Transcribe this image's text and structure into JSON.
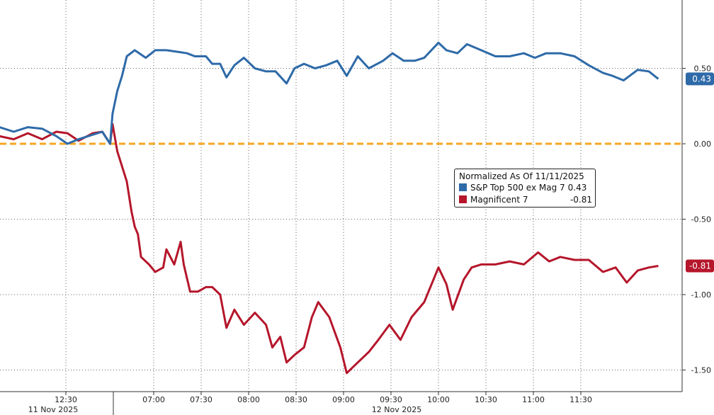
{
  "chart_data": {
    "type": "line",
    "legend_title": "Normalized As Of 11/11/2025",
    "legend_position": "center-right",
    "grid": true,
    "ylim": [
      -1.64,
      0.95
    ],
    "y_ticks": [
      "0.50",
      "0.00",
      "-0.50",
      "-1.00",
      "-1.50"
    ],
    "y_tick_values": [
      0.5,
      0,
      -0.5,
      -1,
      -1.5
    ],
    "x_ticks": [
      {
        "date": "11 Nov 2025",
        "time": "12:30"
      },
      {
        "date": "12 Nov 2025",
        "time": "07:00"
      },
      {
        "date": "12 Nov 2025",
        "time": "07:30"
      },
      {
        "date": "12 Nov 2025",
        "time": "08:00"
      },
      {
        "date": "12 Nov 2025",
        "time": "08:30"
      },
      {
        "date": "12 Nov 2025",
        "time": "09:00"
      },
      {
        "date": "12 Nov 2025",
        "time": "09:30"
      },
      {
        "date": "12 Nov 2025",
        "time": "10:00"
      },
      {
        "date": "12 Nov 2025",
        "time": "10:30"
      },
      {
        "date": "12 Nov 2025",
        "time": "11:00"
      },
      {
        "date": "12 Nov 2025",
        "time": "11:30"
      }
    ],
    "date_labels": [
      "11 Nov 2025",
      "12 Nov 2025"
    ],
    "reference_line": {
      "value": 0,
      "color": "#f5a623",
      "style": "dashed"
    },
    "series": [
      {
        "name": "S&P Top 500 ex Mag 7",
        "color": "#2e6aa8",
        "last_value": "0.43",
        "points": [
          [
            "11 Nov 2025",
            "11:48",
            0.11
          ],
          [
            "11 Nov 2025",
            "11:57",
            0.08
          ],
          [
            "11 Nov 2025",
            "12:06",
            0.11
          ],
          [
            "11 Nov 2025",
            "12:15",
            0.1
          ],
          [
            "11 Nov 2025",
            "12:24",
            0.05
          ],
          [
            "11 Nov 2025",
            "12:31",
            0.0
          ],
          [
            "11 Nov 2025",
            "12:38",
            0.03
          ],
          [
            "11 Nov 2025",
            "12:47",
            0.06
          ],
          [
            "11 Nov 2025",
            "12:53",
            0.08
          ],
          [
            "11 Nov 2025",
            "12:58",
            0.0
          ],
          [
            "12 Nov 2025",
            "06:34",
            0.2
          ],
          [
            "12 Nov 2025",
            "06:37",
            0.35
          ],
          [
            "12 Nov 2025",
            "06:40",
            0.45
          ],
          [
            "12 Nov 2025",
            "06:43",
            0.58
          ],
          [
            "12 Nov 2025",
            "06:48",
            0.62
          ],
          [
            "12 Nov 2025",
            "06:55",
            0.57
          ],
          [
            "12 Nov 2025",
            "07:01",
            0.62
          ],
          [
            "12 Nov 2025",
            "07:08",
            0.62
          ],
          [
            "12 Nov 2025",
            "07:15",
            0.61
          ],
          [
            "12 Nov 2025",
            "07:21",
            0.6
          ],
          [
            "12 Nov 2025",
            "07:26",
            0.58
          ],
          [
            "12 Nov 2025",
            "07:33",
            0.58
          ],
          [
            "12 Nov 2025",
            "07:37",
            0.53
          ],
          [
            "12 Nov 2025",
            "07:42",
            0.53
          ],
          [
            "12 Nov 2025",
            "07:46",
            0.44
          ],
          [
            "12 Nov 2025",
            "07:51",
            0.52
          ],
          [
            "12 Nov 2025",
            "07:57",
            0.57
          ],
          [
            "12 Nov 2025",
            "08:04",
            0.5
          ],
          [
            "12 Nov 2025",
            "08:11",
            0.48
          ],
          [
            "12 Nov 2025",
            "08:17",
            0.48
          ],
          [
            "12 Nov 2025",
            "08:24",
            0.4
          ],
          [
            "12 Nov 2025",
            "08:29",
            0.5
          ],
          [
            "12 Nov 2025",
            "08:35",
            0.53
          ],
          [
            "12 Nov 2025",
            "08:42",
            0.5
          ],
          [
            "12 Nov 2025",
            "08:49",
            0.52
          ],
          [
            "12 Nov 2025",
            "08:56",
            0.55
          ],
          [
            "12 Nov 2025",
            "09:02",
            0.45
          ],
          [
            "12 Nov 2025",
            "09:09",
            0.58
          ],
          [
            "12 Nov 2025",
            "09:16",
            0.5
          ],
          [
            "12 Nov 2025",
            "09:25",
            0.55
          ],
          [
            "12 Nov 2025",
            "09:31",
            0.6
          ],
          [
            "12 Nov 2025",
            "09:38",
            0.55
          ],
          [
            "12 Nov 2025",
            "09:45",
            0.55
          ],
          [
            "12 Nov 2025",
            "09:51",
            0.57
          ],
          [
            "12 Nov 2025",
            "10:00",
            0.67
          ],
          [
            "12 Nov 2025",
            "10:05",
            0.62
          ],
          [
            "12 Nov 2025",
            "10:12",
            0.6
          ],
          [
            "12 Nov 2025",
            "10:18",
            0.66
          ],
          [
            "12 Nov 2025",
            "10:27",
            0.62
          ],
          [
            "12 Nov 2025",
            "10:36",
            0.58
          ],
          [
            "12 Nov 2025",
            "10:45",
            0.58
          ],
          [
            "12 Nov 2025",
            "10:54",
            0.6
          ],
          [
            "12 Nov 2025",
            "11:01",
            0.57
          ],
          [
            "12 Nov 2025",
            "11:08",
            0.6
          ],
          [
            "12 Nov 2025",
            "11:17",
            0.6
          ],
          [
            "12 Nov 2025",
            "11:26",
            0.58
          ],
          [
            "12 Nov 2025",
            "11:35",
            0.52
          ],
          [
            "12 Nov 2025",
            "11:44",
            0.47
          ],
          [
            "12 Nov 2025",
            "11:50",
            0.45
          ],
          [
            "12 Nov 2025",
            "11:57",
            0.42
          ],
          [
            "12 Nov 2025",
            "12:06",
            0.49
          ],
          [
            "12 Nov 2025",
            "12:13",
            0.48
          ],
          [
            "12 Nov 2025",
            "12:19",
            0.43
          ]
        ]
      },
      {
        "name": "Magnificent 7",
        "color": "#b5162b",
        "last_value": "-0.81",
        "points": [
          [
            "11 Nov 2025",
            "11:48",
            0.05
          ],
          [
            "11 Nov 2025",
            "11:57",
            0.03
          ],
          [
            "11 Nov 2025",
            "12:06",
            0.07
          ],
          [
            "11 Nov 2025",
            "12:15",
            0.03
          ],
          [
            "11 Nov 2025",
            "12:24",
            0.08
          ],
          [
            "11 Nov 2025",
            "12:31",
            0.07
          ],
          [
            "11 Nov 2025",
            "12:38",
            0.02
          ],
          [
            "11 Nov 2025",
            "12:47",
            0.07
          ],
          [
            "11 Nov 2025",
            "12:53",
            0.08
          ],
          [
            "11 Nov 2025",
            "12:58",
            0.0
          ],
          [
            "12 Nov 2025",
            "06:34",
            0.13
          ],
          [
            "12 Nov 2025",
            "06:37",
            -0.05
          ],
          [
            "12 Nov 2025",
            "06:40",
            -0.15
          ],
          [
            "12 Nov 2025",
            "06:43",
            -0.25
          ],
          [
            "12 Nov 2025",
            "06:46",
            -0.45
          ],
          [
            "12 Nov 2025",
            "06:48",
            -0.55
          ],
          [
            "12 Nov 2025",
            "06:50",
            -0.6
          ],
          [
            "12 Nov 2025",
            "06:52",
            -0.75
          ],
          [
            "12 Nov 2025",
            "06:57",
            -0.8
          ],
          [
            "12 Nov 2025",
            "07:01",
            -0.85
          ],
          [
            "12 Nov 2025",
            "07:06",
            -0.82
          ],
          [
            "12 Nov 2025",
            "07:08",
            -0.7
          ],
          [
            "12 Nov 2025",
            "07:13",
            -0.8
          ],
          [
            "12 Nov 2025",
            "07:17",
            -0.65
          ],
          [
            "12 Nov 2025",
            "07:19",
            -0.8
          ],
          [
            "12 Nov 2025",
            "07:23",
            -0.98
          ],
          [
            "12 Nov 2025",
            "07:28",
            -0.98
          ],
          [
            "12 Nov 2025",
            "07:33",
            -0.95
          ],
          [
            "12 Nov 2025",
            "07:37",
            -0.95
          ],
          [
            "12 Nov 2025",
            "07:42",
            -1.0
          ],
          [
            "12 Nov 2025",
            "07:46",
            -1.22
          ],
          [
            "12 Nov 2025",
            "07:51",
            -1.1
          ],
          [
            "12 Nov 2025",
            "07:57",
            -1.2
          ],
          [
            "12 Nov 2025",
            "08:04",
            -1.12
          ],
          [
            "12 Nov 2025",
            "08:11",
            -1.2
          ],
          [
            "12 Nov 2025",
            "08:15",
            -1.35
          ],
          [
            "12 Nov 2025",
            "08:20",
            -1.28
          ],
          [
            "12 Nov 2025",
            "08:24",
            -1.45
          ],
          [
            "12 Nov 2025",
            "08:29",
            -1.4
          ],
          [
            "12 Nov 2025",
            "08:35",
            -1.35
          ],
          [
            "12 Nov 2025",
            "08:40",
            -1.15
          ],
          [
            "12 Nov 2025",
            "08:44",
            -1.05
          ],
          [
            "12 Nov 2025",
            "08:51",
            -1.15
          ],
          [
            "12 Nov 2025",
            "08:58",
            -1.35
          ],
          [
            "12 Nov 2025",
            "09:02",
            -1.52
          ],
          [
            "12 Nov 2025",
            "09:09",
            -1.45
          ],
          [
            "12 Nov 2025",
            "09:16",
            -1.38
          ],
          [
            "12 Nov 2025",
            "09:22",
            -1.3
          ],
          [
            "12 Nov 2025",
            "09:29",
            -1.2
          ],
          [
            "12 Nov 2025",
            "09:36",
            -1.3
          ],
          [
            "12 Nov 2025",
            "09:43",
            -1.15
          ],
          [
            "12 Nov 2025",
            "09:51",
            -1.05
          ],
          [
            "12 Nov 2025",
            "10:00",
            -0.82
          ],
          [
            "12 Nov 2025",
            "10:05",
            -0.93
          ],
          [
            "12 Nov 2025",
            "10:09",
            -1.1
          ],
          [
            "12 Nov 2025",
            "10:16",
            -0.9
          ],
          [
            "12 Nov 2025",
            "10:21",
            -0.82
          ],
          [
            "12 Nov 2025",
            "10:27",
            -0.8
          ],
          [
            "12 Nov 2025",
            "10:36",
            -0.8
          ],
          [
            "12 Nov 2025",
            "10:45",
            -0.78
          ],
          [
            "12 Nov 2025",
            "10:54",
            -0.8
          ],
          [
            "12 Nov 2025",
            "11:03",
            -0.72
          ],
          [
            "12 Nov 2025",
            "11:10",
            -0.78
          ],
          [
            "12 Nov 2025",
            "11:17",
            -0.75
          ],
          [
            "12 Nov 2025",
            "11:26",
            -0.77
          ],
          [
            "12 Nov 2025",
            "11:35",
            -0.77
          ],
          [
            "12 Nov 2025",
            "11:44",
            -0.85
          ],
          [
            "12 Nov 2025",
            "11:52",
            -0.82
          ],
          [
            "12 Nov 2025",
            "11:59",
            -0.92
          ],
          [
            "12 Nov 2025",
            "12:06",
            -0.84
          ],
          [
            "12 Nov 2025",
            "12:13",
            -0.82
          ],
          [
            "12 Nov 2025",
            "12:19",
            -0.81
          ]
        ]
      }
    ]
  }
}
